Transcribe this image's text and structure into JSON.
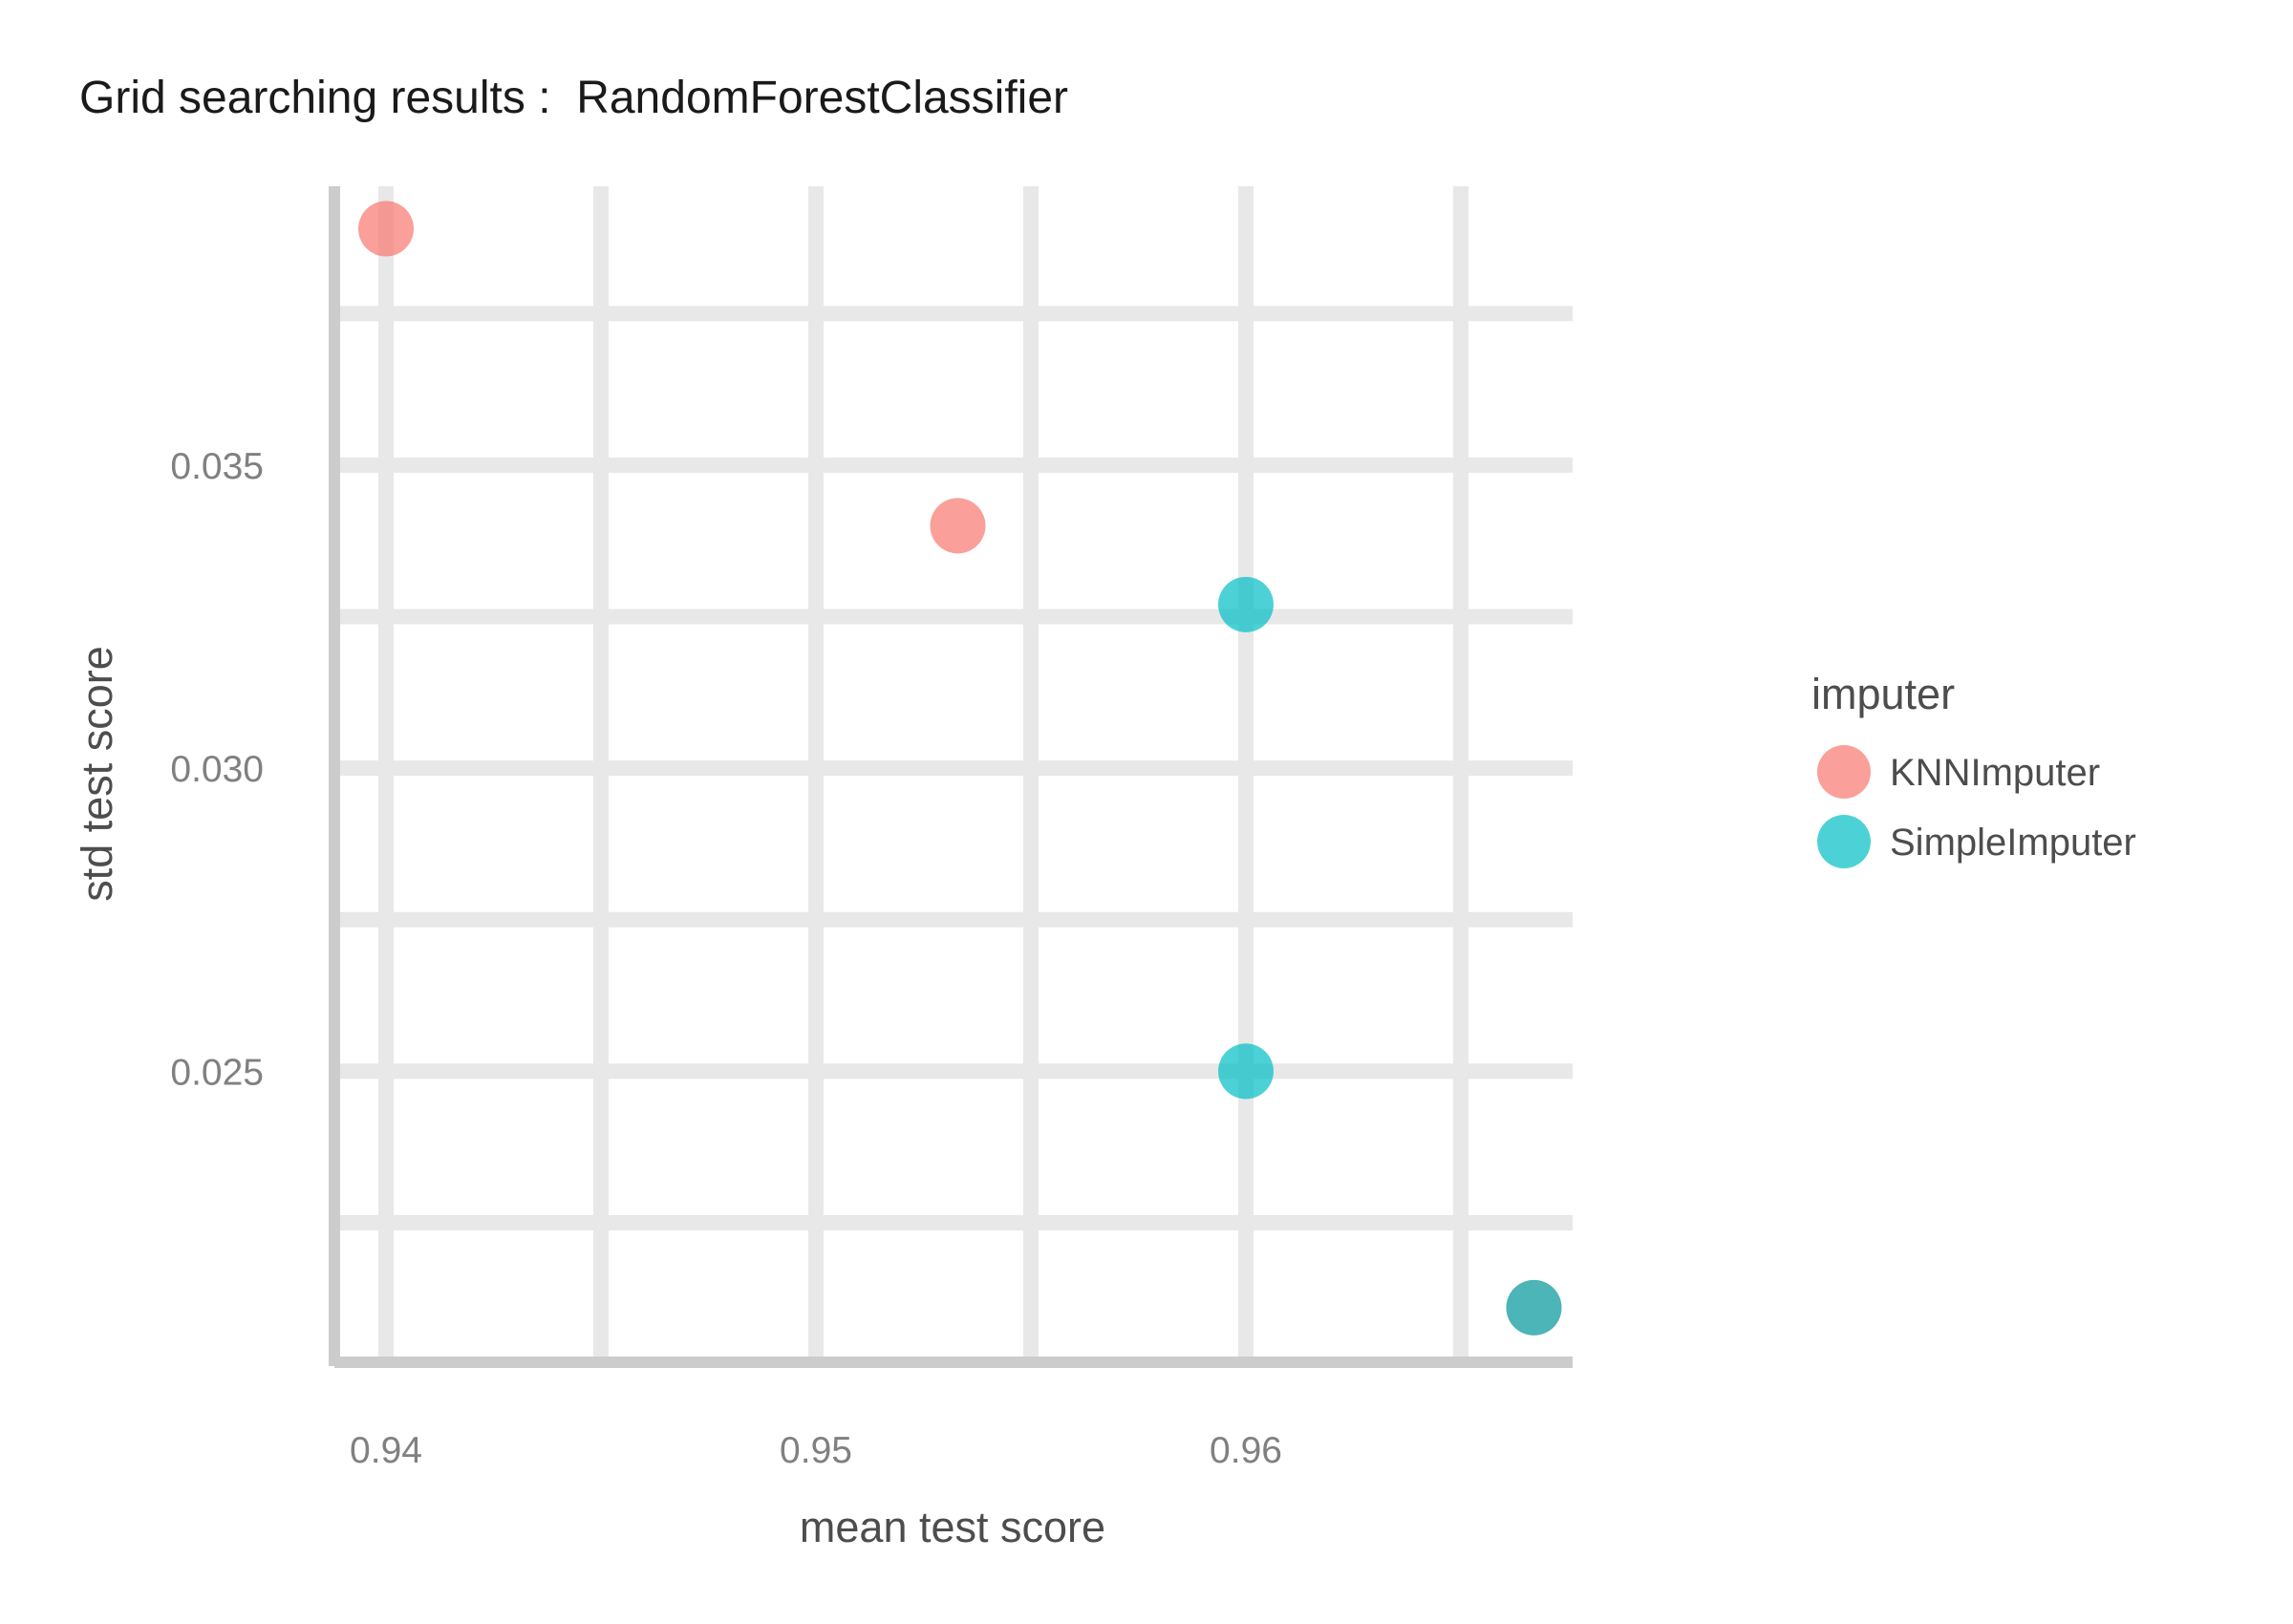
{
  "chart_data": {
    "type": "scatter",
    "title": "Grid searching results :  RandomForestClassifier",
    "xlabel": "mean test score",
    "ylabel": "std test score",
    "xlim": [
      0.9388,
      0.9676
    ],
    "ylim": [
      0.0202,
      0.0396
    ],
    "x_ticks": [
      0.94,
      0.95,
      0.96
    ],
    "x_tick_labels": [
      "0.94",
      "0.95",
      "0.96"
    ],
    "y_ticks": [
      0.025,
      0.03,
      0.035
    ],
    "y_tick_labels": [
      "0.025",
      "0.030",
      "0.035"
    ],
    "grid": true,
    "legend": {
      "title": "imputer",
      "position": "right",
      "entries": [
        {
          "label": "KNNImputer",
          "color": "#F8766D"
        },
        {
          "label": "SimpleImputer",
          "color": "#00BFC4"
        }
      ]
    },
    "series": [
      {
        "name": "KNNImputer",
        "color": "#F8766D",
        "points": [
          {
            "x": 0.94,
            "y": 0.0389
          },
          {
            "x": 0.9533,
            "y": 0.034
          },
          {
            "x": 0.9667,
            "y": 0.0211
          }
        ]
      },
      {
        "name": "SimpleImputer",
        "color": "#00BFC4",
        "points": [
          {
            "x": 0.96,
            "y": 0.0327
          },
          {
            "x": 0.96,
            "y": 0.025
          },
          {
            "x": 0.9667,
            "y": 0.0211
          }
        ]
      }
    ]
  }
}
